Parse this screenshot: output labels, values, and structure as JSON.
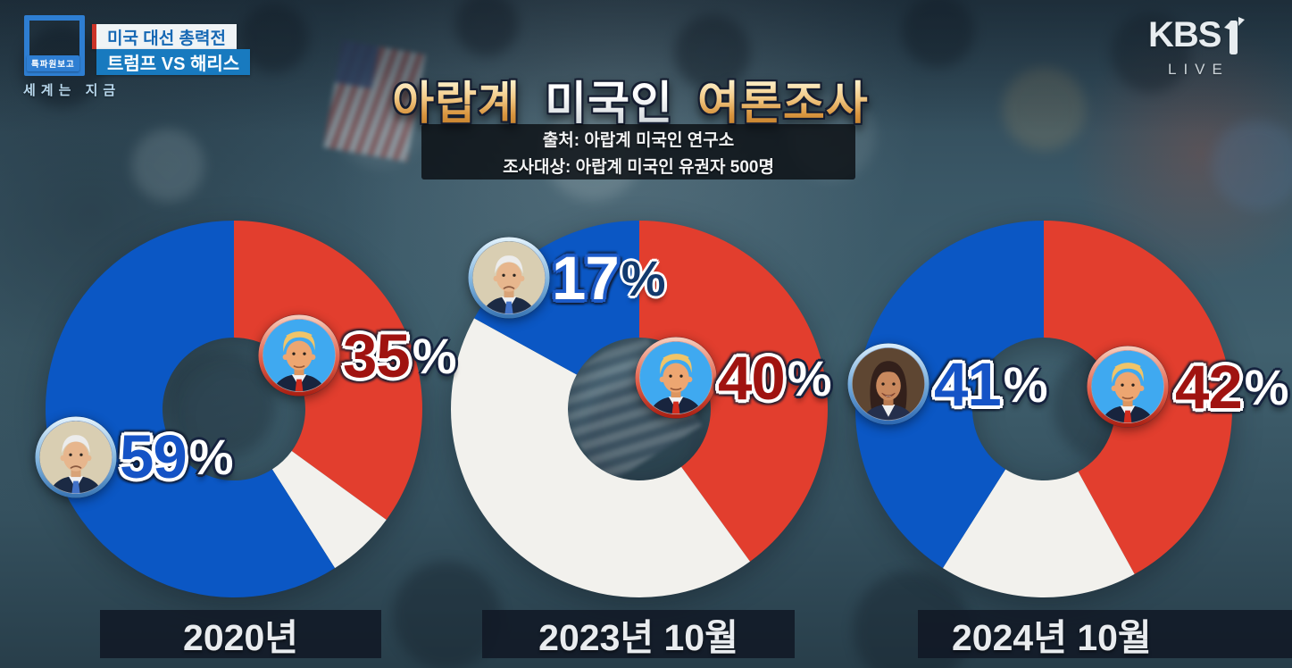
{
  "ui": {
    "percent_sign": "%"
  },
  "broadcast": {
    "program_badge": "특파원보고",
    "program_name": "세계는 지금",
    "topic_line1": "미국 대선 총력전",
    "topic_line2": "트럼프 VS 해리스",
    "channel_name": "KBS",
    "channel_number": "1",
    "live_label": "LIVE"
  },
  "header": {
    "title_parts": [
      {
        "text": "아랍계",
        "style": "gold"
      },
      {
        "text": "미국인",
        "style": "white"
      },
      {
        "text": "여론조사",
        "style": "gold"
      }
    ],
    "source_line": "출처: 아랍계 미국인 연구소",
    "sample_line": "조사대상: 아랍계 미국인 유권자 500명"
  },
  "colors": {
    "democrat_slice": "#0b57c4",
    "republican_slice": "#e23e2e",
    "other_slice": "#f2f1ed",
    "democrat_label": "#1553c6",
    "republican_label": "#a01310",
    "title_gold": "#e8b35c",
    "badge_blue": "#187abf",
    "badge_red": "#cc3429"
  },
  "chart_data": [
    {
      "type": "pie",
      "variant": "donut",
      "title": "2020년",
      "legend_position": "none",
      "start_angle_deg": 0,
      "direction": "clockwise",
      "segments": [
        {
          "candidate": "트럼프",
          "party": "rep",
          "value": 35,
          "num": "35",
          "label": "35%",
          "color": "#e23e2e"
        },
        {
          "candidate": "기타",
          "party": "other",
          "value": 6,
          "color": "#f2f1ed"
        },
        {
          "candidate": "바이든",
          "party": "dem",
          "value": 59,
          "num": "59",
          "label": "59%",
          "color": "#0b57c4"
        }
      ]
    },
    {
      "type": "pie",
      "variant": "donut",
      "title": "2023년 10월",
      "legend_position": "none",
      "start_angle_deg": 0,
      "direction": "clockwise",
      "segments": [
        {
          "candidate": "트럼프",
          "party": "rep",
          "value": 40,
          "num": "40",
          "label": "40%",
          "color": "#e23e2e"
        },
        {
          "candidate": "기타",
          "party": "other",
          "value": 43,
          "color": "#f2f1ed"
        },
        {
          "candidate": "바이든",
          "party": "dem",
          "value": 17,
          "num": "17",
          "label": "17%",
          "color": "#0b57c4"
        }
      ]
    },
    {
      "type": "pie",
      "variant": "donut",
      "title": "2024년 10월",
      "legend_position": "none",
      "start_angle_deg": 0,
      "direction": "clockwise",
      "segments": [
        {
          "candidate": "트럼프",
          "party": "rep",
          "value": 42,
          "num": "42",
          "label": "42%",
          "color": "#e23e2e"
        },
        {
          "candidate": "기타",
          "party": "other",
          "value": 17,
          "color": "#f2f1ed"
        },
        {
          "candidate": "해리스",
          "party": "dem",
          "value": 41,
          "num": "41",
          "label": "41%",
          "color": "#0b57c4"
        }
      ]
    }
  ]
}
